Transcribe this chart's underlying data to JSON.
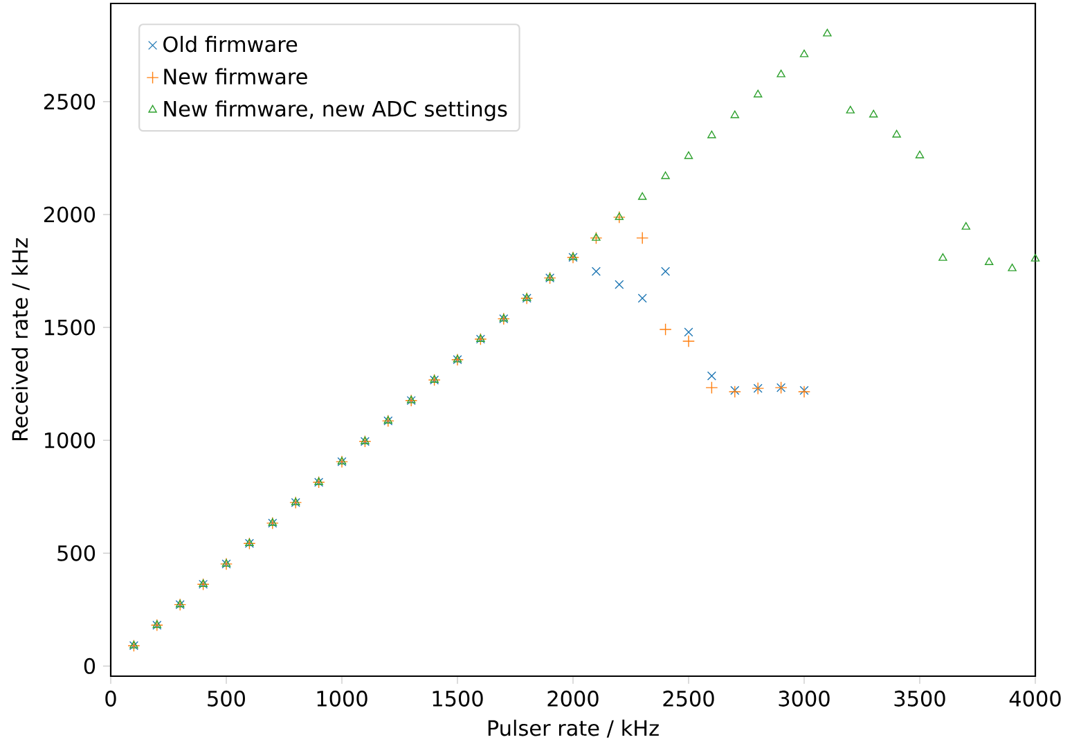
{
  "chart_data": {
    "type": "scatter",
    "xlabel": "Pulser rate / kHz",
    "ylabel": "Received rate / kHz",
    "xlim": [
      0,
      4000
    ],
    "ylim": [
      -45,
      2935
    ],
    "xticks": [
      0,
      500,
      1000,
      1500,
      2000,
      2500,
      3000,
      3500,
      4000
    ],
    "yticks": [
      0,
      500,
      1000,
      1500,
      2000,
      2500
    ],
    "grid": false,
    "legend": "top left",
    "series": [
      {
        "name": "Old firmware",
        "color": "#1f77b4",
        "marker": "cross",
        "x": [
          100,
          200,
          300,
          400,
          500,
          600,
          700,
          800,
          900,
          1000,
          1100,
          1200,
          1300,
          1400,
          1500,
          1600,
          1700,
          1800,
          1900,
          2000,
          2100,
          2200,
          2300,
          2400,
          2500,
          2600,
          2700,
          2800,
          2900,
          3000
        ],
        "values": [
          90,
          181,
          272,
          362,
          452,
          543,
          633,
          724,
          814,
          905,
          995,
          1086,
          1176,
          1267,
          1357,
          1448,
          1538,
          1629,
          1719,
          1810,
          1748,
          1690,
          1629,
          1748,
          1479,
          1285,
          1221,
          1230,
          1233,
          1221
        ]
      },
      {
        "name": "New firmware",
        "color": "#ff7f0e",
        "marker": "plus",
        "x": [
          100,
          200,
          300,
          400,
          500,
          600,
          700,
          800,
          900,
          1000,
          1100,
          1200,
          1300,
          1400,
          1500,
          1600,
          1700,
          1800,
          1900,
          2000,
          2100,
          2200,
          2300,
          2400,
          2500,
          2600,
          2700,
          2800,
          2900,
          3000
        ],
        "values": [
          90,
          181,
          272,
          362,
          452,
          543,
          633,
          724,
          814,
          905,
          995,
          1086,
          1176,
          1267,
          1357,
          1448,
          1538,
          1629,
          1719,
          1810,
          1896,
          1988,
          1896,
          1491,
          1439,
          1233,
          1215,
          1230,
          1233,
          1215
        ]
      },
      {
        "name": "New firmware, new ADC settings",
        "color": "#2ca02c",
        "marker": "triangle",
        "x": [
          100,
          200,
          300,
          400,
          500,
          600,
          700,
          800,
          900,
          1000,
          1100,
          1200,
          1300,
          1400,
          1500,
          1600,
          1700,
          1800,
          1900,
          2000,
          2100,
          2200,
          2300,
          2400,
          2500,
          2600,
          2700,
          2800,
          2900,
          3000,
          3100,
          3200,
          3300,
          3400,
          3500,
          3600,
          3700,
          3800,
          3900,
          4000
        ],
        "values": [
          90,
          181,
          272,
          362,
          452,
          543,
          633,
          724,
          814,
          905,
          995,
          1086,
          1176,
          1267,
          1357,
          1448,
          1538,
          1629,
          1719,
          1810,
          1896,
          1988,
          2077,
          2169,
          2258,
          2350,
          2439,
          2531,
          2620,
          2709,
          2801,
          2460,
          2442,
          2353,
          2261,
          1807,
          1945,
          1788,
          1761,
          1804
        ]
      }
    ]
  }
}
